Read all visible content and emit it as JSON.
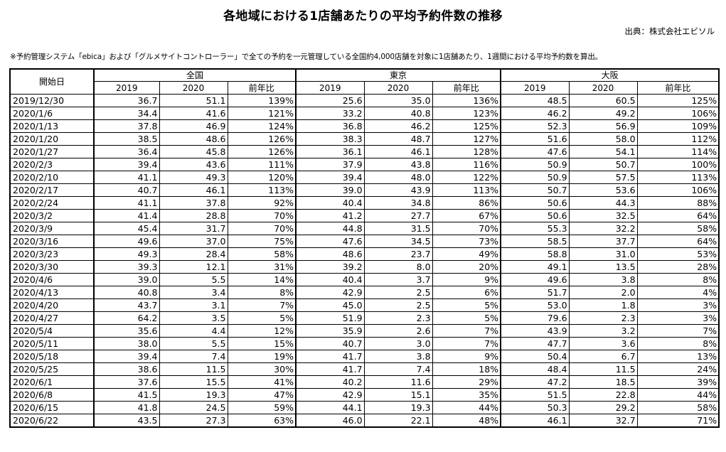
{
  "title": "各地域における1店舗あたりの平均予約件数の推移",
  "source": "出典：株式会社エビソル",
  "note": "※予約管理システム「ebica」および「グルメサイトコントローラー」で全ての予約を一元管理している全国約4,000店舗を対象に1店舗あたり、1週間における平均予約数を算出。",
  "table": {
    "date_header": "開始日",
    "regions": [
      "全国",
      "東京",
      "大阪"
    ],
    "sub_headers": [
      "2019",
      "2020",
      "前年比"
    ],
    "rows": [
      [
        "2019/12/30",
        "36.7",
        "51.1",
        "139%",
        "25.6",
        "35.0",
        "136%",
        "48.5",
        "60.5",
        "125%"
      ],
      [
        "2020/1/6",
        "34.4",
        "41.6",
        "121%",
        "33.2",
        "40.8",
        "123%",
        "46.2",
        "49.2",
        "106%"
      ],
      [
        "2020/1/13",
        "37.8",
        "46.9",
        "124%",
        "36.8",
        "46.2",
        "125%",
        "52.3",
        "56.9",
        "109%"
      ],
      [
        "2020/1/20",
        "38.5",
        "48.6",
        "126%",
        "38.3",
        "48.7",
        "127%",
        "51.6",
        "58.0",
        "112%"
      ],
      [
        "2020/1/27",
        "36.4",
        "45.8",
        "126%",
        "36.1",
        "46.1",
        "128%",
        "47.6",
        "54.1",
        "114%"
      ],
      [
        "2020/2/3",
        "39.4",
        "43.6",
        "111%",
        "37.9",
        "43.8",
        "116%",
        "50.9",
        "50.7",
        "100%"
      ],
      [
        "2020/2/10",
        "41.1",
        "49.3",
        "120%",
        "39.4",
        "48.0",
        "122%",
        "50.9",
        "57.5",
        "113%"
      ],
      [
        "2020/2/17",
        "40.7",
        "46.1",
        "113%",
        "39.0",
        "43.9",
        "113%",
        "50.7",
        "53.6",
        "106%"
      ],
      [
        "2020/2/24",
        "41.1",
        "37.8",
        "92%",
        "40.4",
        "34.8",
        "86%",
        "50.6",
        "44.3",
        "88%"
      ],
      [
        "2020/3/2",
        "41.4",
        "28.8",
        "70%",
        "41.2",
        "27.7",
        "67%",
        "50.6",
        "32.5",
        "64%"
      ],
      [
        "2020/3/9",
        "45.4",
        "31.7",
        "70%",
        "44.8",
        "31.5",
        "70%",
        "55.3",
        "32.2",
        "58%"
      ],
      [
        "2020/3/16",
        "49.6",
        "37.0",
        "75%",
        "47.6",
        "34.5",
        "73%",
        "58.5",
        "37.7",
        "64%"
      ],
      [
        "2020/3/23",
        "49.3",
        "28.4",
        "58%",
        "48.6",
        "23.7",
        "49%",
        "58.8",
        "31.0",
        "53%"
      ],
      [
        "2020/3/30",
        "39.3",
        "12.1",
        "31%",
        "39.2",
        "8.0",
        "20%",
        "49.1",
        "13.5",
        "28%"
      ],
      [
        "2020/4/6",
        "39.0",
        "5.5",
        "14%",
        "40.4",
        "3.7",
        "9%",
        "49.6",
        "3.8",
        "8%"
      ],
      [
        "2020/4/13",
        "40.8",
        "3.4",
        "8%",
        "42.9",
        "2.5",
        "6%",
        "51.7",
        "2.0",
        "4%"
      ],
      [
        "2020/4/20",
        "43.7",
        "3.1",
        "7%",
        "45.0",
        "2.5",
        "5%",
        "53.0",
        "1.8",
        "3%"
      ],
      [
        "2020/4/27",
        "64.2",
        "3.5",
        "5%",
        "51.9",
        "2.3",
        "5%",
        "79.6",
        "2.3",
        "3%"
      ],
      [
        "2020/5/4",
        "35.6",
        "4.4",
        "12%",
        "35.9",
        "2.6",
        "7%",
        "43.9",
        "3.2",
        "7%"
      ],
      [
        "2020/5/11",
        "38.0",
        "5.5",
        "15%",
        "40.7",
        "3.0",
        "7%",
        "47.7",
        "3.6",
        "8%"
      ],
      [
        "2020/5/18",
        "39.4",
        "7.4",
        "19%",
        "41.7",
        "3.8",
        "9%",
        "50.4",
        "6.7",
        "13%"
      ],
      [
        "2020/5/25",
        "38.6",
        "11.5",
        "30%",
        "41.7",
        "7.4",
        "18%",
        "48.4",
        "11.5",
        "24%"
      ],
      [
        "2020/6/1",
        "37.6",
        "15.5",
        "41%",
        "40.2",
        "11.6",
        "29%",
        "47.2",
        "18.5",
        "39%"
      ],
      [
        "2020/6/8",
        "41.5",
        "19.3",
        "47%",
        "42.9",
        "15.1",
        "35%",
        "51.5",
        "22.8",
        "44%"
      ],
      [
        "2020/6/15",
        "41.8",
        "24.5",
        "59%",
        "44.1",
        "19.3",
        "44%",
        "50.3",
        "29.2",
        "58%"
      ],
      [
        "2020/6/22",
        "43.5",
        "27.3",
        "63%",
        "46.0",
        "22.1",
        "48%",
        "46.1",
        "32.7",
        "71%"
      ]
    ]
  }
}
